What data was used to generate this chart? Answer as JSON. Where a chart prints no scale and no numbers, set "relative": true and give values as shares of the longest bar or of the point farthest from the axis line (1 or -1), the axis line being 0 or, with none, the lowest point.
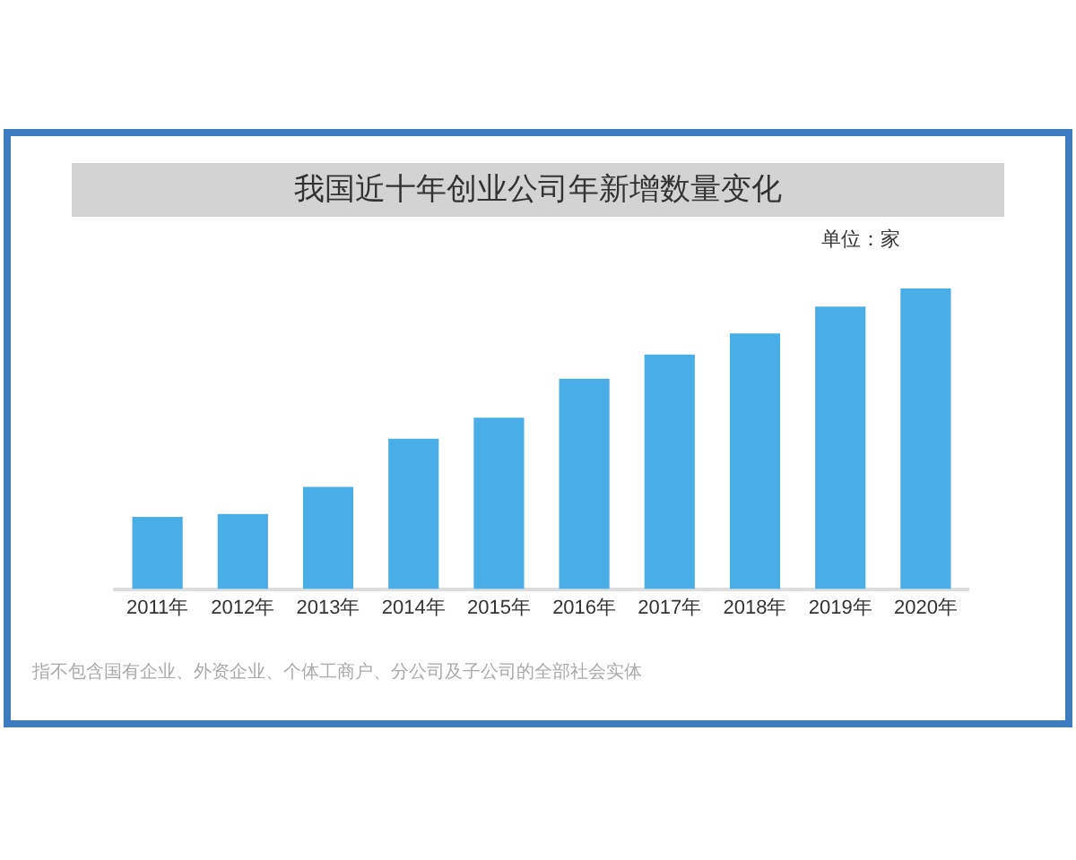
{
  "chart_data": {
    "type": "bar",
    "title": "我国近十年创业公司年新增数量变化",
    "categories": [
      "2011年",
      "2012年",
      "2013年",
      "2014年",
      "2015年",
      "2016年",
      "2017年",
      "2018年",
      "2019年",
      "2020年"
    ],
    "values": [
      0.24,
      0.25,
      0.34,
      0.5,
      0.57,
      0.7,
      0.78,
      0.85,
      0.94,
      1
    ],
    "color": "#4aaee6",
    "relative": true,
    "annotations": [
      "单位：家",
      "指不包含国有企业、外资企业、个体工商户、分公司及子公司的全部社会实体"
    ]
  }
}
